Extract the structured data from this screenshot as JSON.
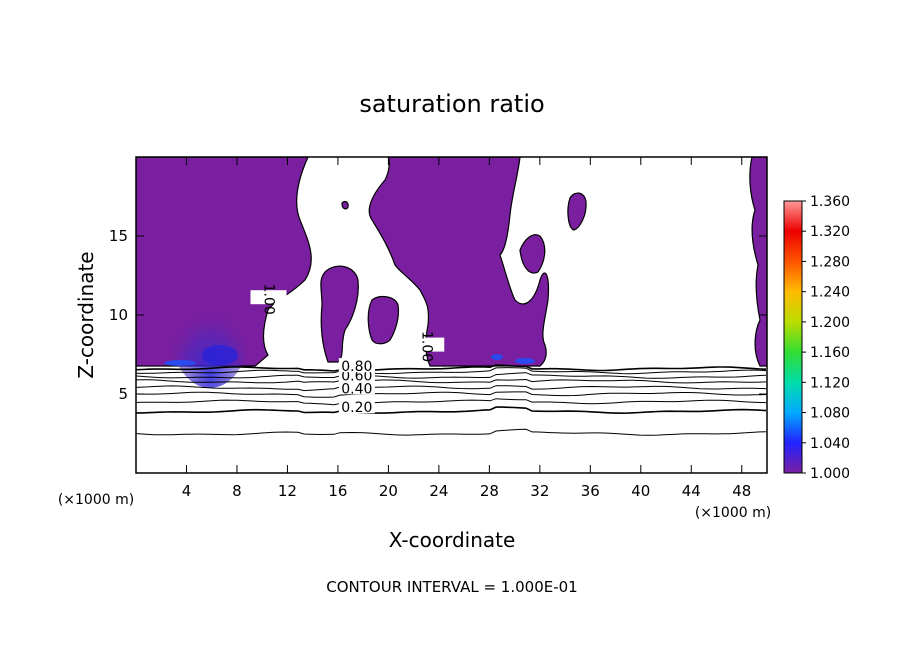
{
  "chart_data": {
    "type": "contour",
    "title": "saturation ratio",
    "xlabel": "X-coordinate",
    "ylabel": "Z-coordinate",
    "x_unit_label": "(×1000 m)",
    "z_unit_label": "(×1000 m)",
    "xlim": [
      0,
      50
    ],
    "ylim": [
      0,
      20
    ],
    "x_ticks": [
      4,
      8,
      12,
      16,
      20,
      24,
      28,
      32,
      36,
      40,
      44,
      48
    ],
    "y_ticks": [
      5,
      10,
      15
    ],
    "colorbar": {
      "min": 1.0,
      "max": 1.36,
      "ticks": [
        "1.000",
        "1.040",
        "1.080",
        "1.120",
        "1.160",
        "1.200",
        "1.240",
        "1.280",
        "1.320",
        "1.360"
      ],
      "colors": [
        "#7a1fa0",
        "#2222ff",
        "#00aaff",
        "#00ddaa",
        "#33dd33",
        "#bbdd00",
        "#ffbb00",
        "#ff5500",
        "#ee0000",
        "#ff9999"
      ]
    },
    "contour_labels": [
      {
        "text": "0.20",
        "x": 17.5,
        "z": 4.1
      },
      {
        "text": "0.40",
        "x": 17.5,
        "z": 5.3
      },
      {
        "text": "0.60",
        "x": 17.5,
        "z": 6.1
      },
      {
        "text": "0.80",
        "x": 17.5,
        "z": 6.7
      },
      {
        "text": "1.00",
        "x": 10.5,
        "z": 11.0
      },
      {
        "text": "1.00",
        "x": 23.0,
        "z": 8.0
      }
    ],
    "contour_lines_z": [
      2.5,
      3.9,
      4.5,
      5.0,
      5.4,
      5.8,
      6.1,
      6.4,
      6.6
    ],
    "footer": "CONTOUR INTERVAL = 1.000E-01"
  }
}
